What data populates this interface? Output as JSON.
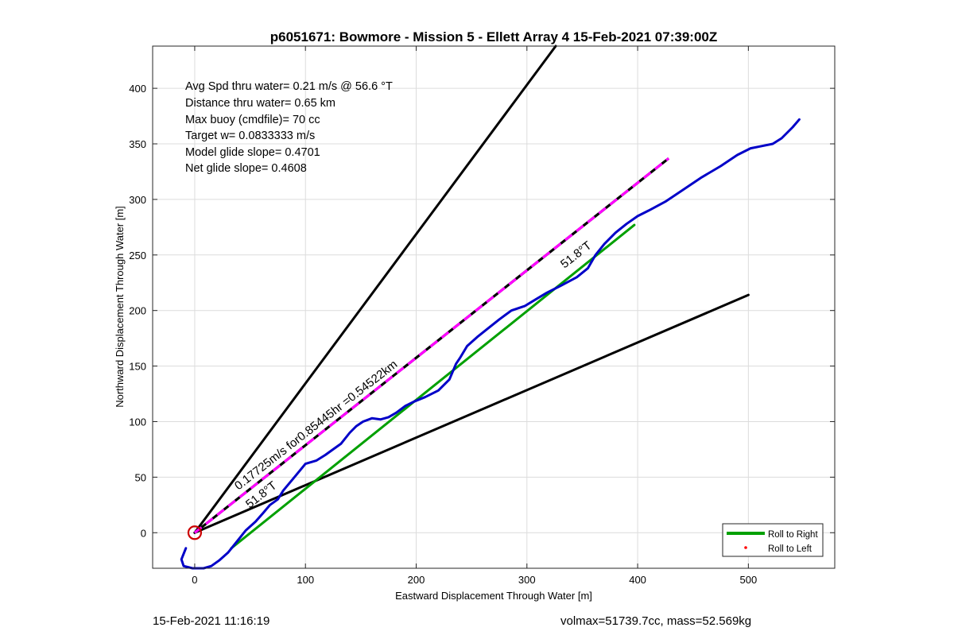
{
  "chart_data": {
    "type": "line",
    "title": "p6051671: Bowmore - Mission 5 - Ellett Array 4 15-Feb-2021 07:39:00Z",
    "xlabel": "Eastward Displacement Through Water [m]",
    "ylabel": "Northward Displacement Through Water [m]",
    "xlim": [
      -38,
      578
    ],
    "ylim": [
      -32,
      438
    ],
    "xticks": [
      0,
      100,
      200,
      300,
      400,
      500
    ],
    "yticks": [
      0,
      50,
      100,
      150,
      200,
      250,
      300,
      350,
      400
    ],
    "grid": true,
    "legend_position": "bottom-right",
    "legend": [
      {
        "name": "Roll to Right",
        "color": "#00a000",
        "marker": "line"
      },
      {
        "name": "Roll to Left",
        "color": "#ff0000",
        "marker": "dot"
      }
    ],
    "annotations": [
      "Avg Spd thru water=  0.21 m/s @  56.6 °T",
      "Distance thru water=  0.65 km",
      "Max buoy (cmdfile)= 70 cc",
      "Target w= 0.0833333 m/s",
      "Model glide slope= 0.4701",
      "Net glide slope= 0.4608"
    ],
    "label_speed": "0.17725m/s for0.85445hr =0.54522km",
    "label_heading_low": "51.8°T",
    "label_heading_high": "51.8°T",
    "series": [
      {
        "role": "track",
        "color": "#0000c8",
        "x": [
          -8,
          -12,
          -10,
          -2,
          8,
          15,
          22,
          30,
          38,
          46,
          55,
          62,
          68,
          75,
          80,
          90,
          100,
          110,
          118,
          125,
          132,
          140,
          146,
          152,
          160,
          168,
          175,
          182,
          190,
          198,
          208,
          220,
          230,
          236,
          240,
          246,
          255,
          265,
          275,
          286,
          298,
          308,
          318,
          330,
          345,
          355,
          362,
          370,
          380,
          390,
          400,
          410,
          425,
          440,
          458,
          475,
          490,
          502,
          512,
          522,
          530,
          540,
          546
        ],
        "y": [
          -14,
          -24,
          -30,
          -32,
          -32,
          -30,
          -25,
          -18,
          -8,
          2,
          10,
          18,
          25,
          30,
          38,
          50,
          62,
          65,
          70,
          75,
          80,
          90,
          96,
          100,
          103,
          102,
          104,
          108,
          114,
          118,
          122,
          128,
          138,
          152,
          158,
          168,
          176,
          184,
          192,
          200,
          204,
          210,
          216,
          222,
          230,
          238,
          250,
          260,
          270,
          278,
          285,
          290,
          298,
          308,
          320,
          330,
          340,
          346,
          348,
          350,
          355,
          365,
          372
        ]
      },
      {
        "role": "roll-to-right",
        "color": "#00a000",
        "x": [
          33,
          397
        ],
        "y": [
          -14,
          277
        ]
      },
      {
        "role": "heading-line",
        "color": "#ff00ff",
        "style": "dashed",
        "x": [
          0,
          428
        ],
        "y": [
          0,
          337
        ]
      },
      {
        "role": "boundary-line",
        "color": "#000000",
        "x": [
          0,
          326
        ],
        "y": [
          0,
          438
        ]
      },
      {
        "role": "boundary-line",
        "color": "#000000",
        "x": [
          0,
          500
        ],
        "y": [
          0,
          214
        ]
      }
    ],
    "start_marker": {
      "x": 0,
      "y": 0,
      "color": "#cc0000"
    }
  },
  "footer": {
    "timestamp": "15-Feb-2021 11:16:19",
    "volmax_mass": "volmax=51739.7cc, mass=52.569kg"
  }
}
